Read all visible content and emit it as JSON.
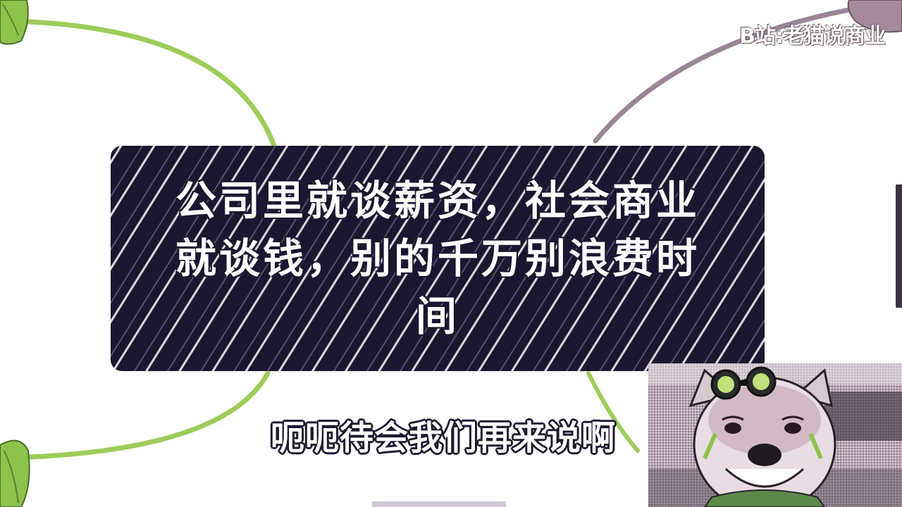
{
  "watermark": {
    "text": "B站:老猫说商业"
  },
  "title_card": {
    "text": "公司里就谈薪资，社会商业就谈钱，别的千万别浪费时间"
  },
  "subtitle": {
    "text": "呃呃待会我们再来说啊"
  },
  "colors": {
    "background": "#ffffff",
    "card": "#1b1730",
    "green_arc": "#9ccc58",
    "purple_arc": "#9a8596"
  },
  "avatar": {
    "icon": "dog-mascot-with-goggles-icon"
  }
}
